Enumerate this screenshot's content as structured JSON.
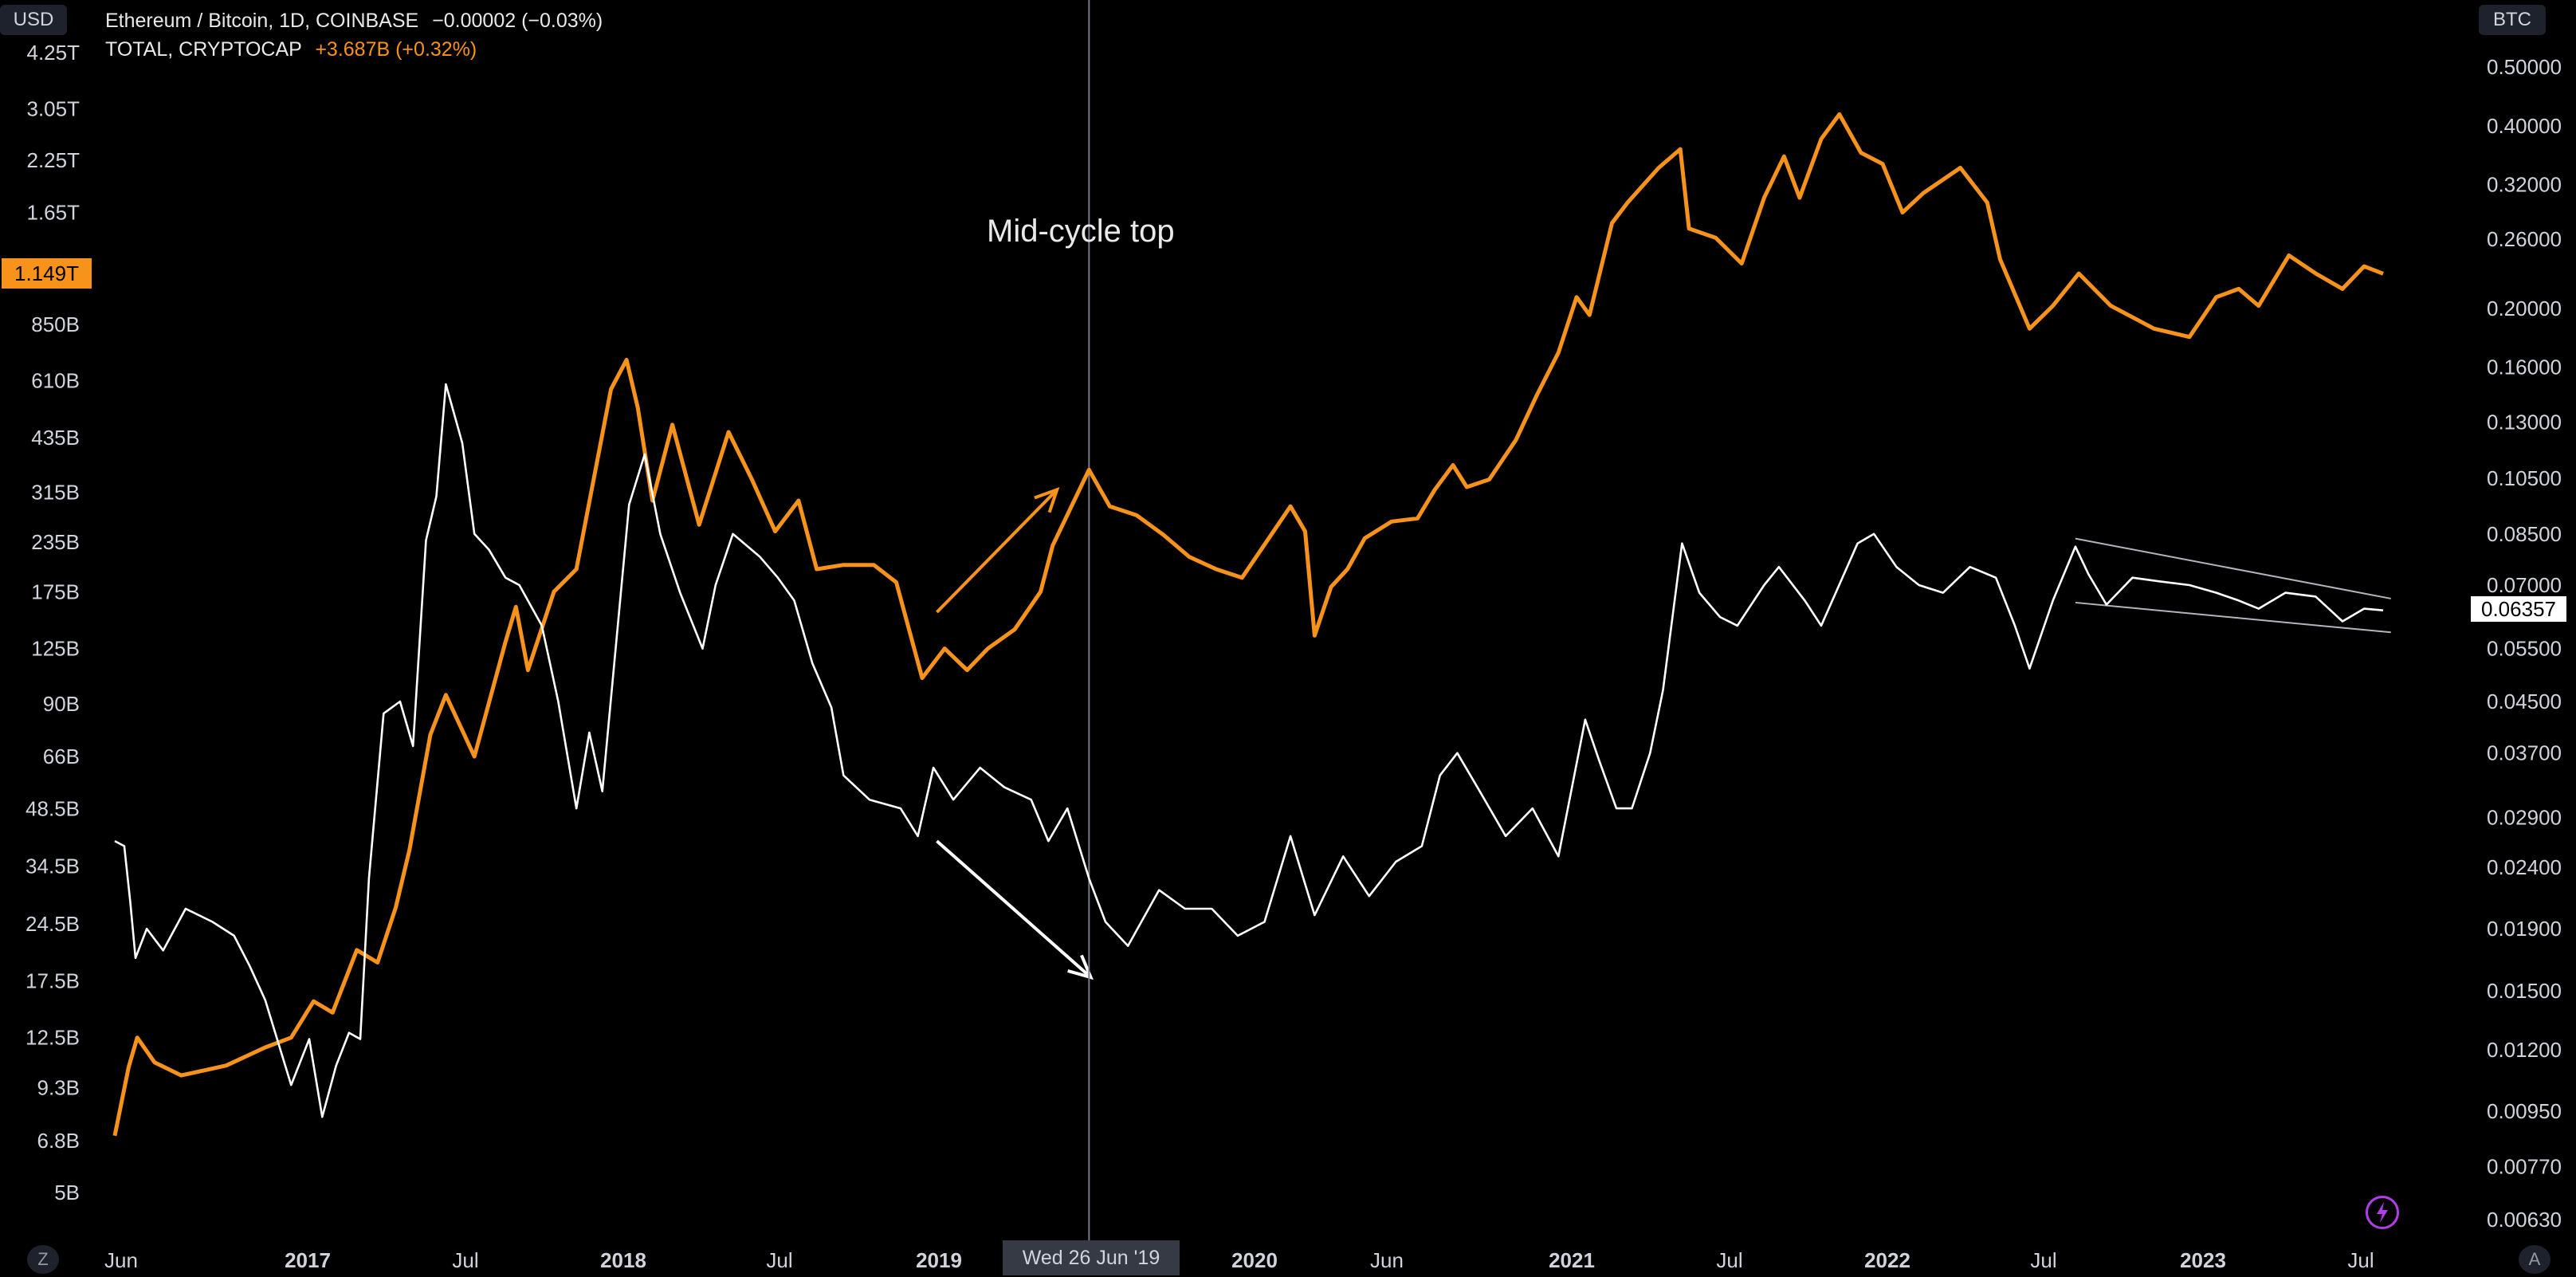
{
  "header": {
    "left_currency": "USD",
    "right_currency": "BTC",
    "row1_symbol": "Ethereum / Bitcoin, 1D, COINBASE",
    "row1_change": "−0.00002 (−0.03%)",
    "row2_symbol": "TOTAL, CRYPTOCAP",
    "row2_change": "+3.687B (+0.32%)"
  },
  "price_labels": {
    "left_current": "1.149T",
    "right_current": "0.06357",
    "crosshair_date": "Wed 26 Jun '19"
  },
  "annotation": "Mid-cycle top",
  "buttons": {
    "left": "Z",
    "right": "A"
  },
  "colors": {
    "total": "#f7931a",
    "ethbtc": "#ffffff",
    "background": "#000000",
    "crosshair": "#787b86"
  },
  "chart_data": {
    "type": "line",
    "x_ticks": [
      "Jun",
      "2017",
      "Jul",
      "2018",
      "Jul",
      "2019",
      "2020",
      "Jun",
      "2021",
      "Jul",
      "2022",
      "Jul",
      "2023",
      "Jul"
    ],
    "left_axis": {
      "currency": "USD",
      "scale": "log",
      "ticks": [
        "4.25T",
        "3.05T",
        "2.25T",
        "1.65T",
        "850B",
        "610B",
        "435B",
        "315B",
        "235B",
        "175B",
        "125B",
        "90B",
        "66B",
        "48.5B",
        "34.5B",
        "24.5B",
        "17.5B",
        "12.5B",
        "9.3B",
        "6.8B",
        "5B"
      ]
    },
    "right_axis": {
      "currency": "BTC",
      "scale": "log",
      "ticks": [
        "0.50000",
        "0.40000",
        "0.32000",
        "0.26000",
        "0.20000",
        "0.16000",
        "0.13000",
        "0.10500",
        "0.08500",
        "0.07000",
        "0.05500",
        "0.04500",
        "0.03700",
        "0.02900",
        "0.02400",
        "0.01900",
        "0.01500",
        "0.01200",
        "0.00950",
        "0.00770",
        "0.00630"
      ]
    },
    "series": [
      {
        "name": "TOTAL, CRYPTOCAP",
        "axis": "left",
        "color": "#f7931a",
        "points": [
          [
            "2016-05-25",
            7.0
          ],
          [
            "2016-06-10",
            10.5
          ],
          [
            "2016-06-20",
            12.5
          ],
          [
            "2016-07-10",
            10.8
          ],
          [
            "2016-08-10",
            10.0
          ],
          [
            "2016-10-01",
            10.6
          ],
          [
            "2016-11-15",
            11.8
          ],
          [
            "2016-12-15",
            12.5
          ],
          [
            "2017-01-10",
            15.5
          ],
          [
            "2017-02-01",
            14.5
          ],
          [
            "2017-03-01",
            21.0
          ],
          [
            "2017-03-25",
            19.5
          ],
          [
            "2017-04-15",
            27.0
          ],
          [
            "2017-05-01",
            38.0
          ],
          [
            "2017-05-25",
            75.0
          ],
          [
            "2017-06-12",
            95.0
          ],
          [
            "2017-07-15",
            66.0
          ],
          [
            "2017-08-20",
            130.0
          ],
          [
            "2017-09-01",
            160.0
          ],
          [
            "2017-09-15",
            110.0
          ],
          [
            "2017-10-15",
            175.0
          ],
          [
            "2017-11-10",
            200.0
          ],
          [
            "2017-12-20",
            580.0
          ],
          [
            "2018-01-07",
            690.0
          ],
          [
            "2018-01-20",
            520.0
          ],
          [
            "2018-02-06",
            300.0
          ],
          [
            "2018-03-01",
            470.0
          ],
          [
            "2018-04-01",
            260.0
          ],
          [
            "2018-05-05",
            450.0
          ],
          [
            "2018-06-01",
            340.0
          ],
          [
            "2018-06-28",
            250.0
          ],
          [
            "2018-07-25",
            300.0
          ],
          [
            "2018-08-15",
            200.0
          ],
          [
            "2018-09-15",
            205.0
          ],
          [
            "2018-10-20",
            205.0
          ],
          [
            "2018-11-15",
            185.0
          ],
          [
            "2018-12-15",
            105.0
          ],
          [
            "2019-01-10",
            125.0
          ],
          [
            "2019-02-05",
            110.0
          ],
          [
            "2019-03-01",
            125.0
          ],
          [
            "2019-04-01",
            140.0
          ],
          [
            "2019-05-01",
            175.0
          ],
          [
            "2019-05-15",
            230.0
          ],
          [
            "2019-06-26",
            360.0
          ],
          [
            "2019-07-20",
            290.0
          ],
          [
            "2019-08-20",
            275.0
          ],
          [
            "2019-09-20",
            245.0
          ],
          [
            "2019-10-20",
            215.0
          ],
          [
            "2019-11-20",
            200.0
          ],
          [
            "2019-12-20",
            190.0
          ],
          [
            "2020-01-20",
            240.0
          ],
          [
            "2020-02-14",
            290.0
          ],
          [
            "2020-03-02",
            250.0
          ],
          [
            "2020-03-13",
            135.0
          ],
          [
            "2020-04-01",
            180.0
          ],
          [
            "2020-04-20",
            200.0
          ],
          [
            "2020-05-10",
            240.0
          ],
          [
            "2020-06-10",
            265.0
          ],
          [
            "2020-07-10",
            270.0
          ],
          [
            "2020-07-30",
            320.0
          ],
          [
            "2020-08-20",
            370.0
          ],
          [
            "2020-09-05",
            325.0
          ],
          [
            "2020-10-01",
            340.0
          ],
          [
            "2020-11-01",
            430.0
          ],
          [
            "2020-11-25",
            560.0
          ],
          [
            "2020-12-20",
            720.0
          ],
          [
            "2021-01-10",
            1000.0
          ],
          [
            "2021-01-25",
            900.0
          ],
          [
            "2021-02-20",
            1550.0
          ],
          [
            "2021-03-10",
            1750.0
          ],
          [
            "2021-04-15",
            2150.0
          ],
          [
            "2021-05-10",
            2400.0
          ],
          [
            "2021-05-20",
            1500.0
          ],
          [
            "2021-06-20",
            1420.0
          ],
          [
            "2021-07-20",
            1220.0
          ],
          [
            "2021-08-15",
            1800.0
          ],
          [
            "2021-09-07",
            2300.0
          ],
          [
            "2021-09-25",
            1800.0
          ],
          [
            "2021-10-20",
            2550.0
          ],
          [
            "2021-11-10",
            2950.0
          ],
          [
            "2021-12-05",
            2350.0
          ],
          [
            "2021-12-30",
            2200.0
          ],
          [
            "2022-01-22",
            1650.0
          ],
          [
            "2022-02-15",
            1850.0
          ],
          [
            "2022-03-30",
            2150.0
          ],
          [
            "2022-04-30",
            1750.0
          ],
          [
            "2022-05-15",
            1250.0
          ],
          [
            "2022-06-18",
            830.0
          ],
          [
            "2022-07-15",
            950.0
          ],
          [
            "2022-08-14",
            1150.0
          ],
          [
            "2022-09-20",
            950.0
          ],
          [
            "2022-11-09",
            830.0
          ],
          [
            "2022-12-20",
            790.0
          ],
          [
            "2023-01-20",
            1000.0
          ],
          [
            "2023-02-15",
            1050.0
          ],
          [
            "2023-03-10",
            950.0
          ],
          [
            "2023-04-14",
            1280.0
          ],
          [
            "2023-05-15",
            1150.0
          ],
          [
            "2023-06-15",
            1050.0
          ],
          [
            "2023-07-10",
            1200.0
          ],
          [
            "2023-08-01",
            1149.0
          ]
        ]
      },
      {
        "name": "Ethereum / Bitcoin, 1D, COINBASE",
        "axis": "right",
        "color": "#ffffff",
        "points": [
          [
            "2016-05-25",
            0.0265
          ],
          [
            "2016-06-05",
            0.026
          ],
          [
            "2016-06-12",
            0.021
          ],
          [
            "2016-06-18",
            0.017
          ],
          [
            "2016-07-01",
            0.019
          ],
          [
            "2016-07-20",
            0.0175
          ],
          [
            "2016-08-15",
            0.0205
          ],
          [
            "2016-09-15",
            0.0195
          ],
          [
            "2016-10-10",
            0.0185
          ],
          [
            "2016-10-28",
            0.0165
          ],
          [
            "2016-11-15",
            0.0145
          ],
          [
            "2016-12-15",
            0.0105
          ],
          [
            "2017-01-05",
            0.0125
          ],
          [
            "2017-01-20",
            0.0093
          ],
          [
            "2017-02-05",
            0.0113
          ],
          [
            "2017-02-20",
            0.0128
          ],
          [
            "2017-03-05",
            0.0125
          ],
          [
            "2017-03-15",
            0.023
          ],
          [
            "2017-04-01",
            0.043
          ],
          [
            "2017-04-20",
            0.045
          ],
          [
            "2017-05-05",
            0.038
          ],
          [
            "2017-05-20",
            0.083
          ],
          [
            "2017-06-01",
            0.098
          ],
          [
            "2017-06-12",
            0.15
          ],
          [
            "2017-07-01",
            0.12
          ],
          [
            "2017-07-15",
            0.085
          ],
          [
            "2017-08-01",
            0.08
          ],
          [
            "2017-08-20",
            0.072
          ],
          [
            "2017-09-05",
            0.07
          ],
          [
            "2017-10-01",
            0.06
          ],
          [
            "2017-10-20",
            0.045
          ],
          [
            "2017-11-10",
            0.03
          ],
          [
            "2017-11-25",
            0.04
          ],
          [
            "2017-12-10",
            0.032
          ],
          [
            "2018-01-10",
            0.095
          ],
          [
            "2018-01-28",
            0.115
          ],
          [
            "2018-02-15",
            0.085
          ],
          [
            "2018-03-10",
            0.068
          ],
          [
            "2018-04-05",
            0.055
          ],
          [
            "2018-04-20",
            0.07
          ],
          [
            "2018-05-10",
            0.085
          ],
          [
            "2018-06-10",
            0.078
          ],
          [
            "2018-07-01",
            0.072
          ],
          [
            "2018-07-20",
            0.066
          ],
          [
            "2018-08-10",
            0.052
          ],
          [
            "2018-09-01",
            0.044
          ],
          [
            "2018-09-15",
            0.034
          ],
          [
            "2018-10-15",
            0.031
          ],
          [
            "2018-11-20",
            0.03
          ],
          [
            "2018-12-10",
            0.027
          ],
          [
            "2018-12-28",
            0.035
          ],
          [
            "2019-01-20",
            0.031
          ],
          [
            "2019-02-20",
            0.035
          ],
          [
            "2019-03-20",
            0.0325
          ],
          [
            "2019-04-20",
            0.031
          ],
          [
            "2019-05-10",
            0.0265
          ],
          [
            "2019-06-01",
            0.03
          ],
          [
            "2019-06-26",
            0.023
          ],
          [
            "2019-07-15",
            0.0195
          ],
          [
            "2019-08-10",
            0.0178
          ],
          [
            "2019-09-15",
            0.022
          ],
          [
            "2019-10-15",
            0.0205
          ],
          [
            "2019-11-15",
            0.0205
          ],
          [
            "2019-12-15",
            0.0185
          ],
          [
            "2020-01-15",
            0.0195
          ],
          [
            "2020-02-14",
            0.027
          ],
          [
            "2020-03-13",
            0.02
          ],
          [
            "2020-04-15",
            0.025
          ],
          [
            "2020-05-15",
            0.0215
          ],
          [
            "2020-06-15",
            0.0245
          ],
          [
            "2020-07-15",
            0.026
          ],
          [
            "2020-08-05",
            0.034
          ],
          [
            "2020-08-25",
            0.037
          ],
          [
            "2020-09-20",
            0.032
          ],
          [
            "2020-10-20",
            0.027
          ],
          [
            "2020-11-20",
            0.03
          ],
          [
            "2020-12-20",
            0.025
          ],
          [
            "2021-01-20",
            0.042
          ],
          [
            "2021-02-05",
            0.036
          ],
          [
            "2021-02-25",
            0.03
          ],
          [
            "2021-03-15",
            0.03
          ],
          [
            "2021-04-05",
            0.037
          ],
          [
            "2021-04-20",
            0.047
          ],
          [
            "2021-05-12",
            0.082
          ],
          [
            "2021-06-01",
            0.068
          ],
          [
            "2021-06-25",
            0.062
          ],
          [
            "2021-07-15",
            0.06
          ],
          [
            "2021-08-15",
            0.07
          ],
          [
            "2021-09-01",
            0.075
          ],
          [
            "2021-10-01",
            0.066
          ],
          [
            "2021-10-20",
            0.06
          ],
          [
            "2021-12-01",
            0.082
          ],
          [
            "2021-12-20",
            0.085
          ],
          [
            "2022-01-15",
            0.075
          ],
          [
            "2022-02-10",
            0.07
          ],
          [
            "2022-03-10",
            0.068
          ],
          [
            "2022-04-10",
            0.075
          ],
          [
            "2022-05-10",
            0.072
          ],
          [
            "2022-06-01",
            0.06
          ],
          [
            "2022-06-18",
            0.051
          ],
          [
            "2022-07-15",
            0.066
          ],
          [
            "2022-08-10",
            0.081
          ],
          [
            "2022-08-25",
            0.073
          ],
          [
            "2022-09-15",
            0.065
          ],
          [
            "2022-10-15",
            0.072
          ],
          [
            "2022-11-15",
            0.071
          ],
          [
            "2022-12-20",
            0.07
          ],
          [
            "2023-01-20",
            0.068
          ],
          [
            "2023-02-15",
            0.066
          ],
          [
            "2023-03-10",
            0.064
          ],
          [
            "2023-04-10",
            0.068
          ],
          [
            "2023-05-15",
            0.067
          ],
          [
            "2023-06-15",
            0.061
          ],
          [
            "2023-07-10",
            0.064
          ],
          [
            "2023-08-01",
            0.0636
          ]
        ]
      }
    ],
    "drawings": [
      {
        "type": "arrow",
        "color": "#f7931a",
        "from": [
          "2019-01-01",
          155.0
        ],
        "to": [
          "2019-05-20",
          320.0
        ],
        "axis": "left"
      },
      {
        "type": "arrow",
        "color": "#ffffff",
        "from": [
          "2019-01-01",
          0.0265
        ],
        "to": [
          "2019-06-28",
          0.0158
        ],
        "axis": "right"
      },
      {
        "type": "line",
        "color": "#b2b5be",
        "from": [
          "2022-08-10",
          0.0835
        ],
        "to": [
          "2023-08-10",
          0.0665
        ],
        "axis": "right"
      },
      {
        "type": "line",
        "color": "#b2b5be",
        "from": [
          "2022-08-10",
          0.0655
        ],
        "to": [
          "2023-08-10",
          0.0585
        ],
        "axis": "right"
      },
      {
        "type": "vline",
        "color": "#787b86",
        "at": "2019-06-26"
      }
    ]
  }
}
